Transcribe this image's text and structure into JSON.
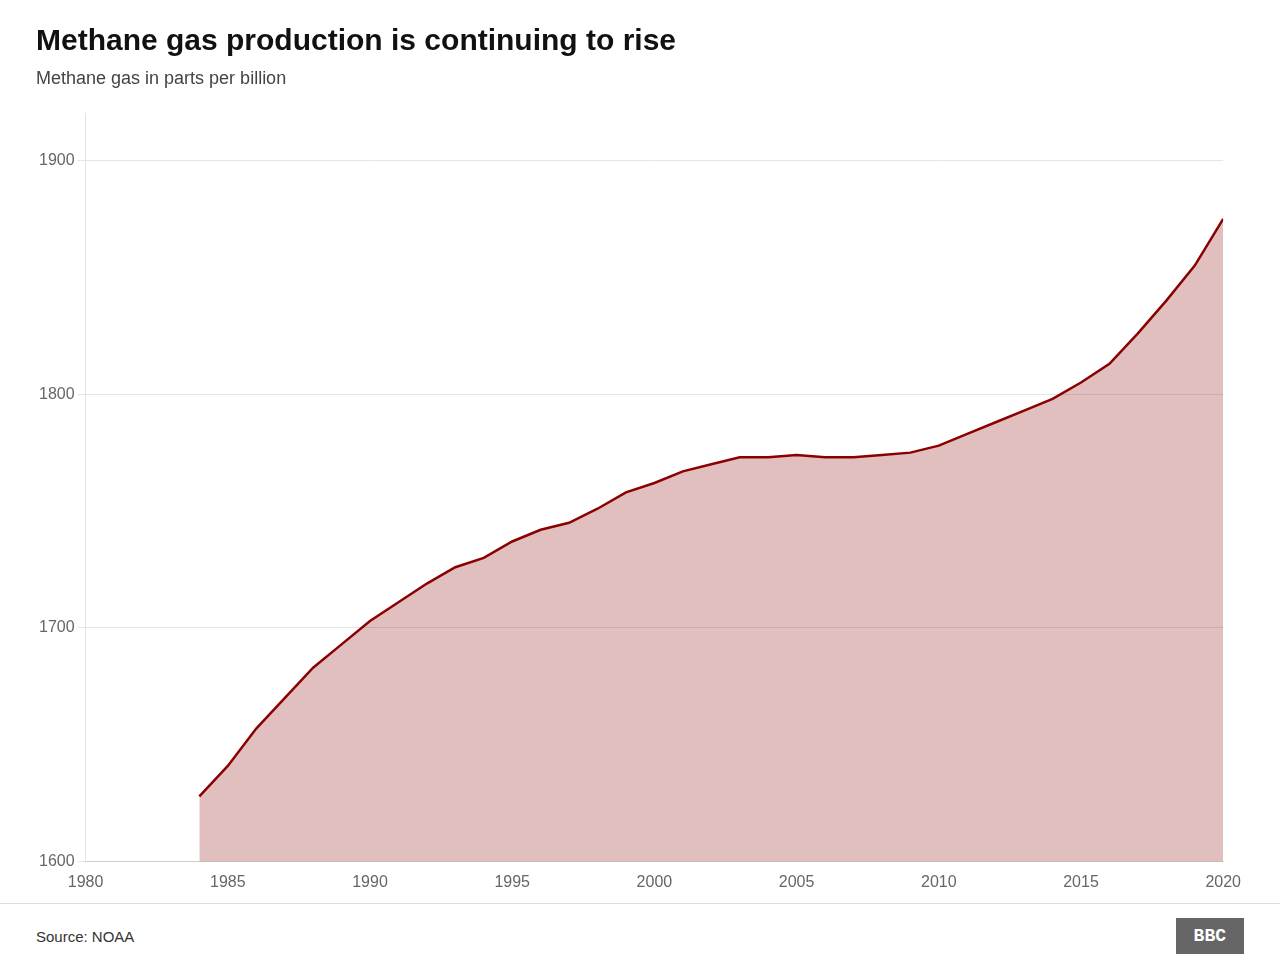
{
  "chart_data": {
    "type": "area",
    "title": "Methane gas production is continuing to rise",
    "subtitle": "Methane gas in parts per billion",
    "annotations": [
      "Source: NOAA",
      "BBC"
    ],
    "x": [
      1984,
      1985,
      1986,
      1987,
      1988,
      1989,
      1990,
      1991,
      1992,
      1993,
      1994,
      1995,
      1996,
      1997,
      1998,
      1999,
      2000,
      2001,
      2002,
      2003,
      2004,
      2005,
      2006,
      2007,
      2008,
      2009,
      2010,
      2011,
      2012,
      2013,
      2014,
      2015,
      2016,
      2017,
      2018,
      2019,
      2020
    ],
    "values": [
      1628,
      1641,
      1657,
      1670,
      1683,
      1693,
      1703,
      1711,
      1719,
      1726,
      1730,
      1737,
      1742,
      1745,
      1751,
      1758,
      1762,
      1767,
      1770,
      1773,
      1773,
      1774,
      1773,
      1773,
      1774,
      1775,
      1778,
      1783,
      1788,
      1793,
      1798,
      1805,
      1813,
      1826,
      1840,
      1855,
      1875
    ],
    "color": "#8B0000",
    "xlim": [
      1980,
      2020
    ],
    "xticks": [
      1980,
      1985,
      1990,
      1995,
      2000,
      2005,
      2010,
      2015,
      2020
    ],
    "ylim": [
      1600,
      1920
    ],
    "yticks": [
      1600,
      1700,
      1800,
      1900
    ],
    "grid": "y"
  }
}
